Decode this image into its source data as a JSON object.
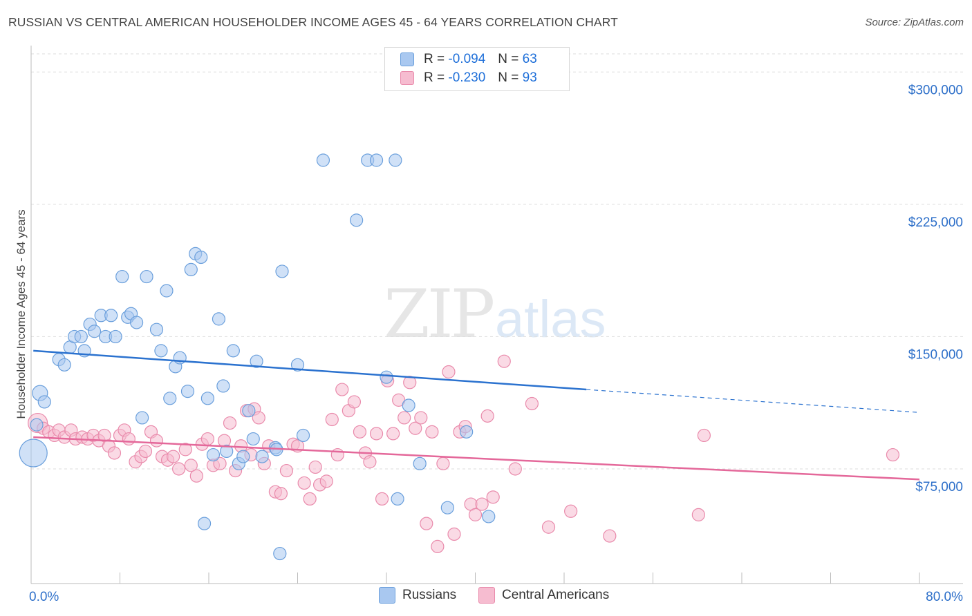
{
  "title": "RUSSIAN VS CENTRAL AMERICAN HOUSEHOLDER INCOME AGES 45 - 64 YEARS CORRELATION CHART",
  "source": "Source: ZipAtlas.com",
  "watermark": {
    "zip": "ZIP",
    "atlas": "atlas"
  },
  "legend": {
    "r_label": "R =",
    "n_label": "N =",
    "rows": [
      {
        "r": "-0.094",
        "n": "63"
      },
      {
        "r": "-0.230",
        "n": "93"
      }
    ]
  },
  "colors": {
    "russians_fill": "#a9c8f0",
    "russians_stroke": "#6a9fdc",
    "russians_line": "#2b72cf",
    "central_fill": "#f6bcd0",
    "central_stroke": "#e98aab",
    "central_line": "#e4689a",
    "tick_label": "#2d6fc9",
    "grid": "#dedede"
  },
  "chart_data": {
    "type": "scatter",
    "xlabel": "",
    "ylabel": "Householder Income Ages 45 - 64 years",
    "xlim": [
      0,
      80
    ],
    "ylim": [
      10000,
      315000
    ],
    "x_tick_labels": [
      "0.0%",
      "80.0%"
    ],
    "y_ticks": [
      75000,
      150000,
      225000,
      300000
    ],
    "y_tick_labels": [
      "$75,000",
      "$150,000",
      "$225,000",
      "$300,000"
    ],
    "grid": true,
    "legend_position": "top-center",
    "series": [
      {
        "name": "Russians",
        "trend": {
          "x0": 0.2,
          "y0": 142000,
          "x1": 50.0,
          "y1": 120000,
          "dashed_to_x": 80.0,
          "dashed_to_y": 107000
        },
        "points": [
          [
            0.2,
            84000
          ],
          [
            0.5,
            100000
          ],
          [
            0.8,
            118000
          ],
          [
            1.2,
            113000
          ],
          [
            2.5,
            137000
          ],
          [
            3.0,
            134000
          ],
          [
            3.5,
            144000
          ],
          [
            3.9,
            150000
          ],
          [
            4.5,
            150000
          ],
          [
            4.8,
            142000
          ],
          [
            5.3,
            157000
          ],
          [
            5.7,
            153000
          ],
          [
            6.3,
            162000
          ],
          [
            6.7,
            150000
          ],
          [
            7.2,
            162000
          ],
          [
            7.6,
            150000
          ],
          [
            8.2,
            184000
          ],
          [
            8.7,
            161000
          ],
          [
            9.0,
            163000
          ],
          [
            9.5,
            158000
          ],
          [
            10.0,
            104000
          ],
          [
            10.4,
            184000
          ],
          [
            11.3,
            154000
          ],
          [
            11.7,
            142000
          ],
          [
            12.2,
            176000
          ],
          [
            12.5,
            115000
          ],
          [
            13.0,
            133000
          ],
          [
            13.4,
            138000
          ],
          [
            14.1,
            119000
          ],
          [
            14.4,
            188000
          ],
          [
            14.8,
            197000
          ],
          [
            15.3,
            195000
          ],
          [
            15.6,
            44000
          ],
          [
            15.9,
            115000
          ],
          [
            16.4,
            83000
          ],
          [
            16.9,
            160000
          ],
          [
            17.3,
            122000
          ],
          [
            17.6,
            85000
          ],
          [
            18.2,
            142000
          ],
          [
            18.7,
            78000
          ],
          [
            19.1,
            82000
          ],
          [
            19.6,
            108000
          ],
          [
            20.0,
            92000
          ],
          [
            20.3,
            136000
          ],
          [
            20.8,
            82000
          ],
          [
            22.0,
            87000
          ],
          [
            22.4,
            27000
          ],
          [
            22.6,
            187000
          ],
          [
            24.0,
            134000
          ],
          [
            24.5,
            94000
          ],
          [
            26.3,
            250000
          ],
          [
            29.3,
            216000
          ],
          [
            30.3,
            250000
          ],
          [
            31.1,
            250000
          ],
          [
            32.0,
            127000
          ],
          [
            32.8,
            250000
          ],
          [
            34.0,
            111000
          ],
          [
            35.0,
            78000
          ],
          [
            37.5,
            53000
          ],
          [
            39.2,
            96000
          ],
          [
            41.2,
            48000
          ],
          [
            22.1,
            86000
          ],
          [
            33.0,
            58000
          ]
        ]
      },
      {
        "name": "Central Americans",
        "trend": {
          "x0": 0.2,
          "y0": 93000,
          "x1": 80.0,
          "y1": 69000
        },
        "points": [
          [
            0.6,
            101000
          ],
          [
            1.1,
            98000
          ],
          [
            1.6,
            96000
          ],
          [
            2.1,
            94000
          ],
          [
            2.5,
            97000
          ],
          [
            3.0,
            93000
          ],
          [
            3.6,
            97000
          ],
          [
            4.0,
            92000
          ],
          [
            4.6,
            93000
          ],
          [
            5.1,
            92000
          ],
          [
            5.6,
            94000
          ],
          [
            6.1,
            91000
          ],
          [
            6.6,
            94000
          ],
          [
            7.0,
            88000
          ],
          [
            7.5,
            84000
          ],
          [
            8.0,
            94000
          ],
          [
            8.4,
            97000
          ],
          [
            8.8,
            92000
          ],
          [
            9.4,
            79000
          ],
          [
            9.9,
            82000
          ],
          [
            10.3,
            85000
          ],
          [
            10.8,
            96000
          ],
          [
            11.3,
            91000
          ],
          [
            11.8,
            82000
          ],
          [
            12.3,
            80000
          ],
          [
            12.8,
            82000
          ],
          [
            13.3,
            75000
          ],
          [
            13.9,
            86000
          ],
          [
            14.4,
            77000
          ],
          [
            14.9,
            71000
          ],
          [
            15.4,
            89000
          ],
          [
            15.9,
            92000
          ],
          [
            16.4,
            77000
          ],
          [
            17.0,
            78000
          ],
          [
            17.4,
            91000
          ],
          [
            17.9,
            101000
          ],
          [
            18.4,
            74000
          ],
          [
            18.9,
            88000
          ],
          [
            19.4,
            108000
          ],
          [
            19.8,
            83000
          ],
          [
            20.1,
            109000
          ],
          [
            20.5,
            104000
          ],
          [
            21.0,
            78000
          ],
          [
            21.4,
            88000
          ],
          [
            22.0,
            62000
          ],
          [
            22.5,
            61000
          ],
          [
            23.0,
            74000
          ],
          [
            23.6,
            89000
          ],
          [
            24.0,
            88000
          ],
          [
            24.6,
            67000
          ],
          [
            25.1,
            58000
          ],
          [
            25.6,
            76000
          ],
          [
            26.0,
            66000
          ],
          [
            26.6,
            68000
          ],
          [
            27.1,
            103000
          ],
          [
            27.6,
            83000
          ],
          [
            28.0,
            120000
          ],
          [
            28.6,
            108000
          ],
          [
            29.1,
            113000
          ],
          [
            29.6,
            96000
          ],
          [
            30.1,
            84000
          ],
          [
            30.5,
            79000
          ],
          [
            31.1,
            95000
          ],
          [
            31.6,
            58000
          ],
          [
            32.1,
            125000
          ],
          [
            32.6,
            95000
          ],
          [
            33.1,
            114000
          ],
          [
            33.6,
            104000
          ],
          [
            34.1,
            124000
          ],
          [
            34.6,
            98000
          ],
          [
            35.1,
            104000
          ],
          [
            35.6,
            44000
          ],
          [
            36.1,
            96000
          ],
          [
            36.6,
            31000
          ],
          [
            37.1,
            78000
          ],
          [
            37.6,
            130000
          ],
          [
            38.1,
            38000
          ],
          [
            38.6,
            96000
          ],
          [
            39.1,
            99000
          ],
          [
            39.6,
            55000
          ],
          [
            40.0,
            49000
          ],
          [
            40.6,
            55000
          ],
          [
            41.1,
            105000
          ],
          [
            41.6,
            59000
          ],
          [
            42.6,
            136000
          ],
          [
            43.6,
            75000
          ],
          [
            45.1,
            112000
          ],
          [
            46.6,
            42000
          ],
          [
            48.6,
            51000
          ],
          [
            52.1,
            37000
          ],
          [
            60.1,
            49000
          ],
          [
            60.6,
            94000
          ],
          [
            77.6,
            83000
          ]
        ]
      }
    ]
  },
  "bottom_legend": [
    {
      "label": "Russians"
    },
    {
      "label": "Central Americans"
    }
  ]
}
